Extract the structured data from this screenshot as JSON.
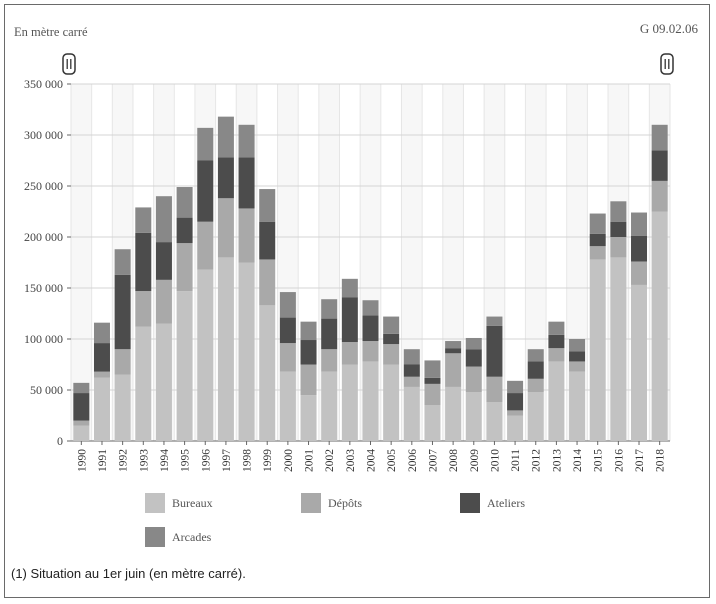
{
  "subtitle": "En mètre carré",
  "code": "G 09.02.06",
  "footnote": "(1) Situation au 1er juin (en mètre carré).",
  "colors": {
    "Bureaux": "#c2c2c2",
    "Dépôts": "#a9a9a9",
    "Ateliers": "#4c4c4c",
    "Arcades": "#888888",
    "grid": "#d4d4d4",
    "band": "#f7f7f7"
  },
  "chart_data": {
    "type": "bar",
    "stacked": true,
    "categories": [
      "1990",
      "1991",
      "1992",
      "1993",
      "1994",
      "1995",
      "1996",
      "1997",
      "1998",
      "1999",
      "2000",
      "2001",
      "2002",
      "2003",
      "2004",
      "2005",
      "2006",
      "2007",
      "2008",
      "2009",
      "2010",
      "2011",
      "2012",
      "2013",
      "2014",
      "2015",
      "2016",
      "2017",
      "2018"
    ],
    "series": [
      {
        "name": "Bureaux",
        "values": [
          15000,
          62000,
          65000,
          112000,
          115000,
          147000,
          168000,
          180000,
          175000,
          133000,
          68000,
          45000,
          68000,
          75000,
          78000,
          75000,
          53000,
          35000,
          53000,
          48000,
          38000,
          25000,
          48000,
          78000,
          68000,
          178000,
          180000,
          153000,
          225000
        ]
      },
      {
        "name": "Dépôts",
        "values": [
          5000,
          6000,
          25000,
          35000,
          43000,
          47000,
          47000,
          58000,
          53000,
          45000,
          28000,
          30000,
          22000,
          22000,
          20000,
          20000,
          10000,
          21000,
          33000,
          25000,
          25000,
          5000,
          13000,
          13000,
          10000,
          13000,
          20000,
          23000,
          30000
        ]
      },
      {
        "name": "Ateliers",
        "values": [
          27000,
          28000,
          73000,
          57000,
          37000,
          25000,
          60000,
          40000,
          50000,
          37000,
          25000,
          24000,
          30000,
          44000,
          25000,
          10000,
          12000,
          6000,
          5000,
          17000,
          50000,
          17000,
          17000,
          13000,
          10000,
          12000,
          15000,
          25000,
          30000
        ]
      },
      {
        "name": "Arcades",
        "values": [
          10000,
          20000,
          25000,
          25000,
          45000,
          30000,
          32000,
          40000,
          32000,
          32000,
          25000,
          18000,
          19000,
          18000,
          15000,
          17000,
          15000,
          17000,
          7000,
          11000,
          9000,
          12000,
          12000,
          13000,
          12000,
          20000,
          20000,
          23000,
          25000
        ]
      }
    ],
    "yticks": [
      "0",
      "50 000",
      "100 000",
      "150 000",
      "200 000",
      "250 000",
      "300 000",
      "350 000"
    ],
    "ylim": [
      0,
      350000
    ],
    "legend_placement": "bottom-left",
    "grid": true
  }
}
